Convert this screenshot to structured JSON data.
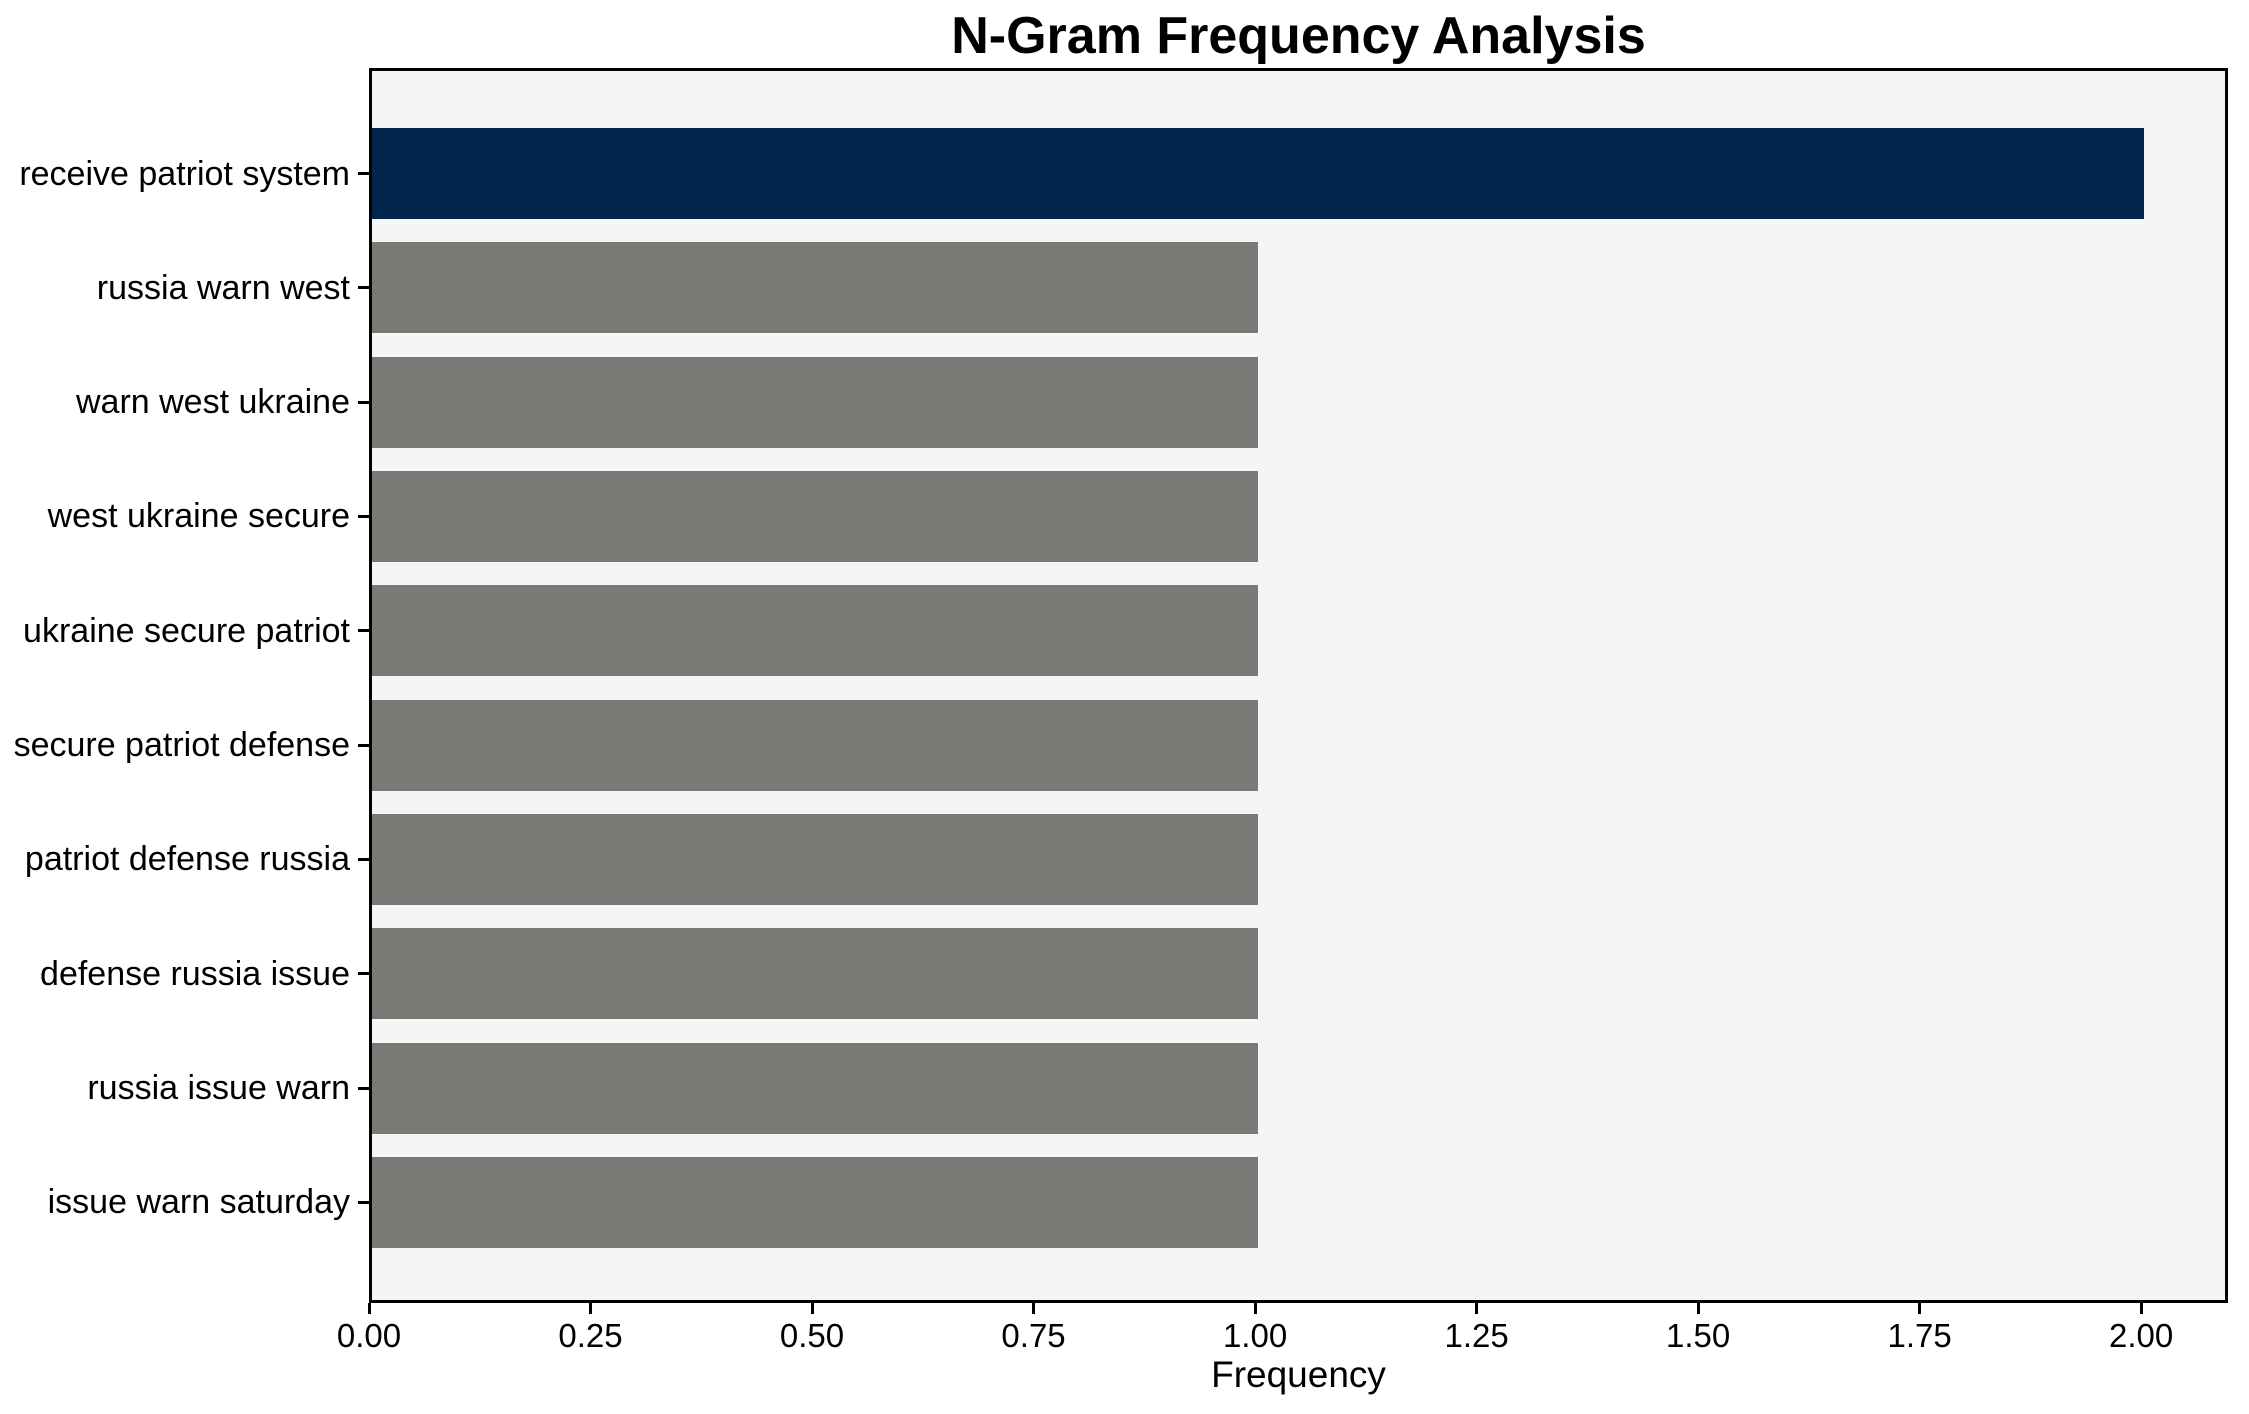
{
  "chart_data": {
    "type": "bar",
    "orientation": "horizontal",
    "title": "N-Gram Frequency Analysis",
    "xlabel": "Frequency",
    "ylabel": "",
    "categories": [
      "receive patriot system",
      "russia warn west",
      "warn west ukraine",
      "west ukraine secure",
      "ukraine secure patriot",
      "secure patriot defense",
      "patriot defense russia",
      "defense russia issue",
      "russia issue warn",
      "issue warn saturday"
    ],
    "values": [
      2,
      1,
      1,
      1,
      1,
      1,
      1,
      1,
      1,
      1
    ],
    "bar_colors": [
      "#02254e",
      "#7a7975",
      "#7a7975",
      "#7a7975",
      "#7a7975",
      "#7a7975",
      "#7a7975",
      "#7a7975",
      "#7a7975",
      "#7a7975"
    ],
    "xlim": [
      0,
      2.098
    ],
    "x_ticks": [
      {
        "value": 0.0,
        "label": "0.00"
      },
      {
        "value": 0.25,
        "label": "0.25"
      },
      {
        "value": 0.5,
        "label": "0.50"
      },
      {
        "value": 0.75,
        "label": "0.75"
      },
      {
        "value": 1.0,
        "label": "1.00"
      },
      {
        "value": 1.25,
        "label": "1.25"
      },
      {
        "value": 1.5,
        "label": "1.50"
      },
      {
        "value": 1.75,
        "label": "1.75"
      },
      {
        "value": 2.0,
        "label": "2.00"
      }
    ],
    "grid": false,
    "legend_position": "none",
    "colors": {
      "highlight_bar": "#02254e",
      "default_bar": "#7a7975",
      "plot_background": "#f5f5f5",
      "figure_background": "#ffffff",
      "spine": "#000000",
      "text": "#000000"
    }
  }
}
